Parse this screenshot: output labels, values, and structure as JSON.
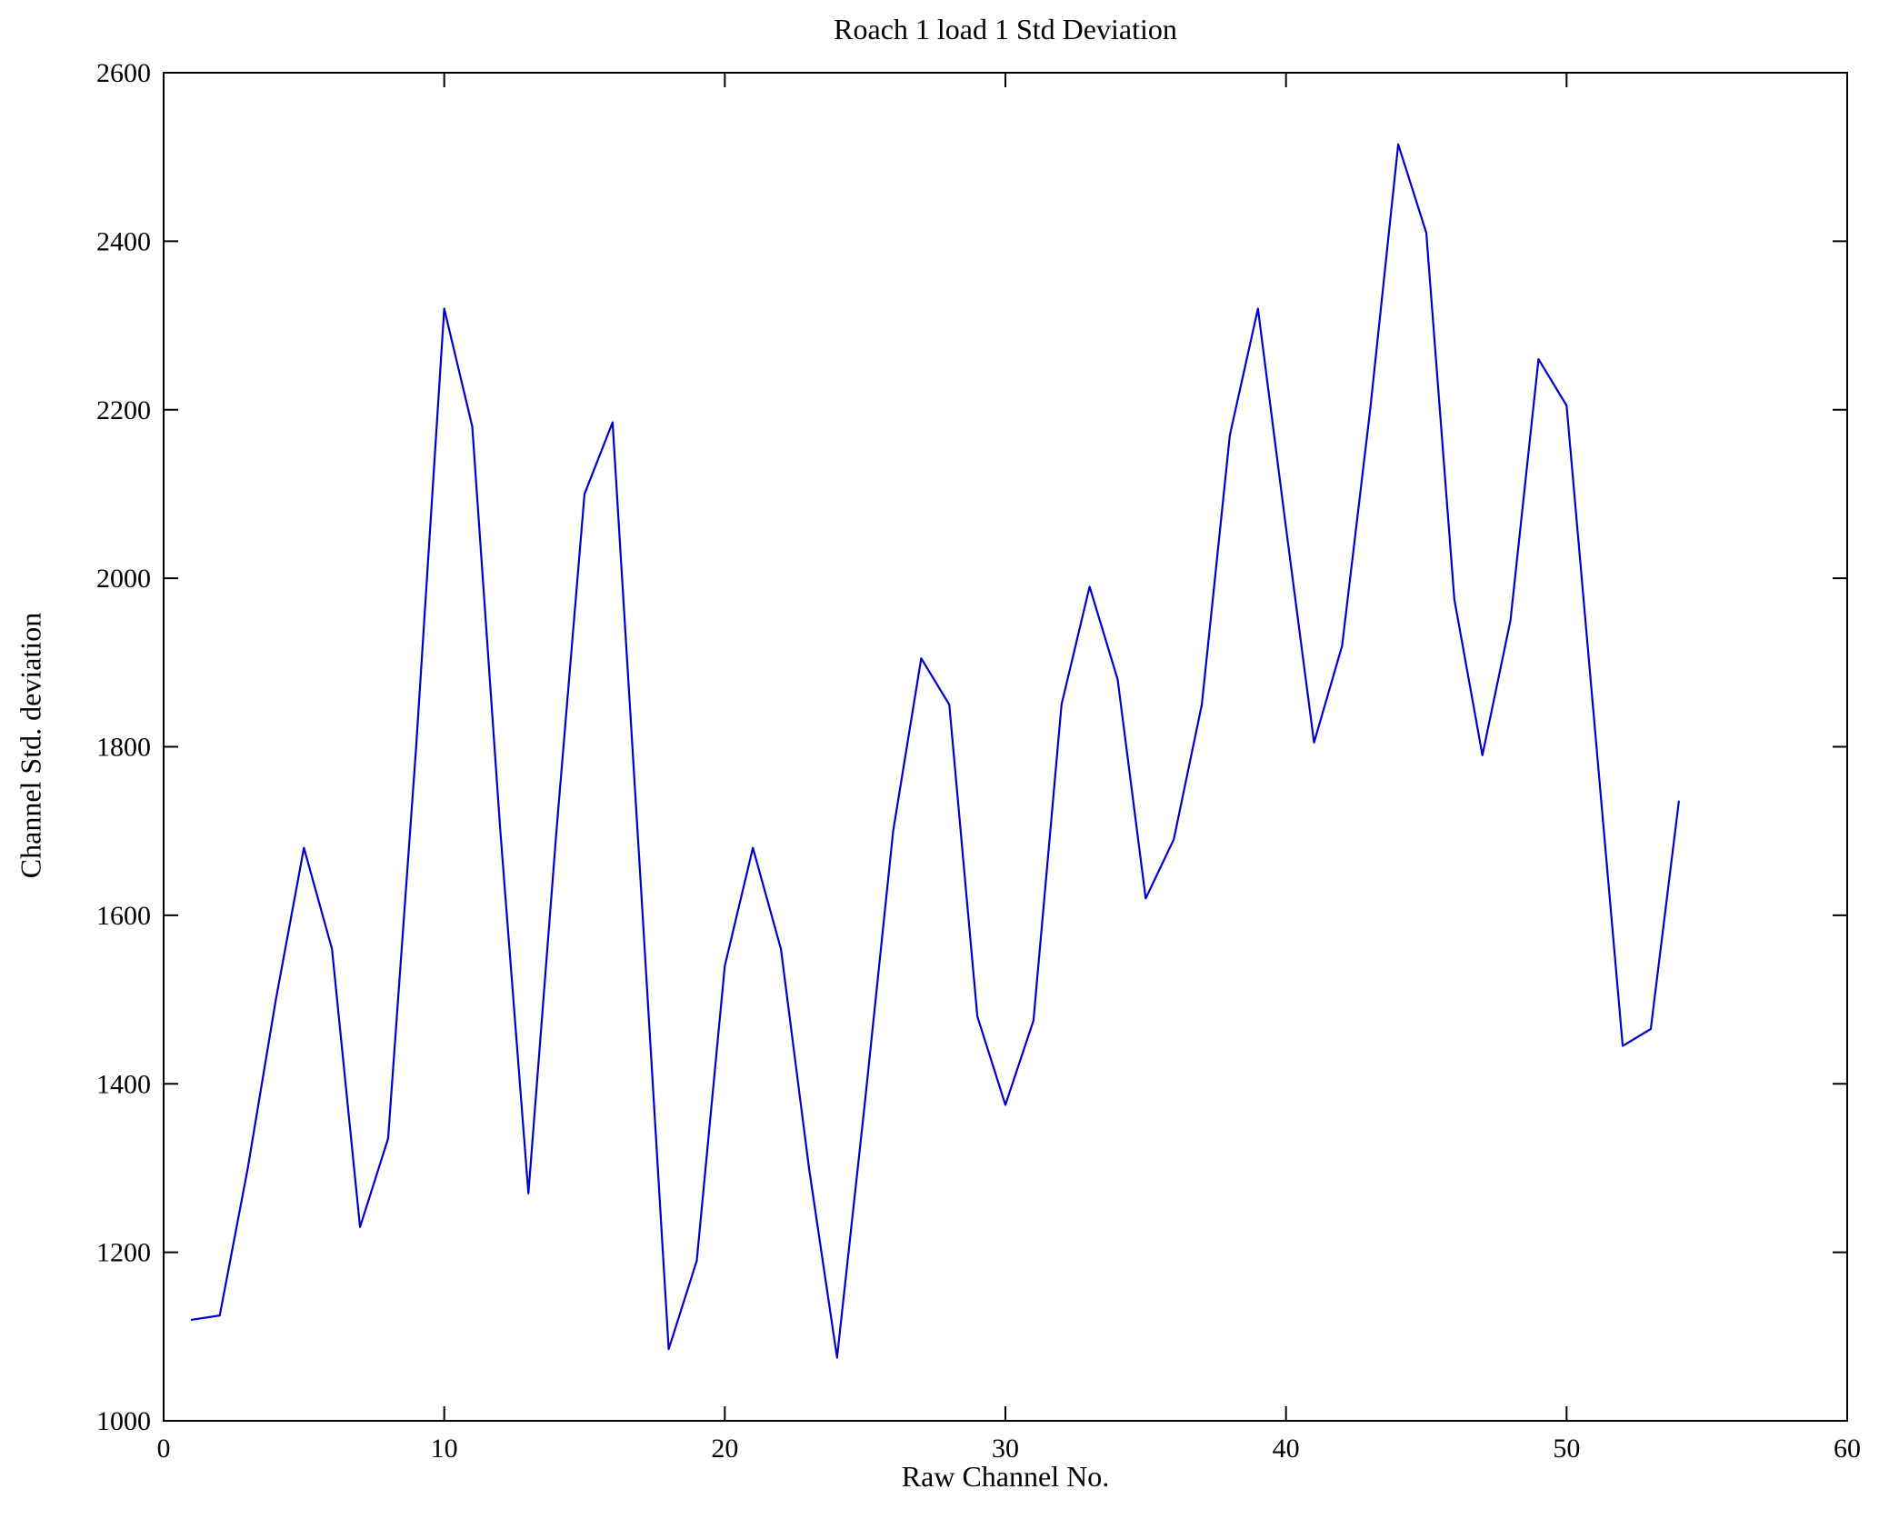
{
  "page": {
    "background": "#ffffff"
  },
  "chart_data": {
    "type": "line",
    "title": "Roach 1 load 1 Std Deviation",
    "xlabel": "Raw Channel No.",
    "ylabel": "Channel Std. deviation",
    "xlim": [
      0,
      60
    ],
    "ylim": [
      1000,
      2600
    ],
    "x_ticks": [
      0,
      10,
      20,
      30,
      40,
      50,
      60
    ],
    "y_ticks": [
      1000,
      1200,
      1400,
      1600,
      1800,
      2000,
      2200,
      2400,
      2600
    ],
    "grid": false,
    "legend": "none",
    "line_color": "#0000cc",
    "axis_color": "#000000",
    "x": [
      1,
      2,
      3,
      4,
      5,
      6,
      7,
      8,
      9,
      10,
      11,
      12,
      13,
      14,
      15,
      16,
      17,
      18,
      19,
      20,
      21,
      22,
      23,
      24,
      25,
      26,
      27,
      28,
      29,
      30,
      31,
      32,
      33,
      34,
      35,
      36,
      37,
      38,
      39,
      40,
      41,
      42,
      43,
      44,
      45,
      46,
      47,
      48,
      49,
      50,
      51,
      52,
      53,
      54
    ],
    "values": [
      1120,
      1125,
      1300,
      1500,
      1680,
      1560,
      1230,
      1335,
      1800,
      2320,
      2180,
      1700,
      1270,
      1700,
      2100,
      2185,
      1640,
      1085,
      1190,
      1540,
      1680,
      1560,
      1300,
      1075,
      1380,
      1700,
      1905,
      1850,
      1480,
      1375,
      1475,
      1850,
      1990,
      1880,
      1620,
      1690,
      1850,
      2170,
      2320,
      2060,
      1805,
      1920,
      2200,
      2515,
      2410,
      1975,
      1790,
      1950,
      2260,
      2205,
      1825,
      1445,
      1465,
      1735
    ]
  }
}
